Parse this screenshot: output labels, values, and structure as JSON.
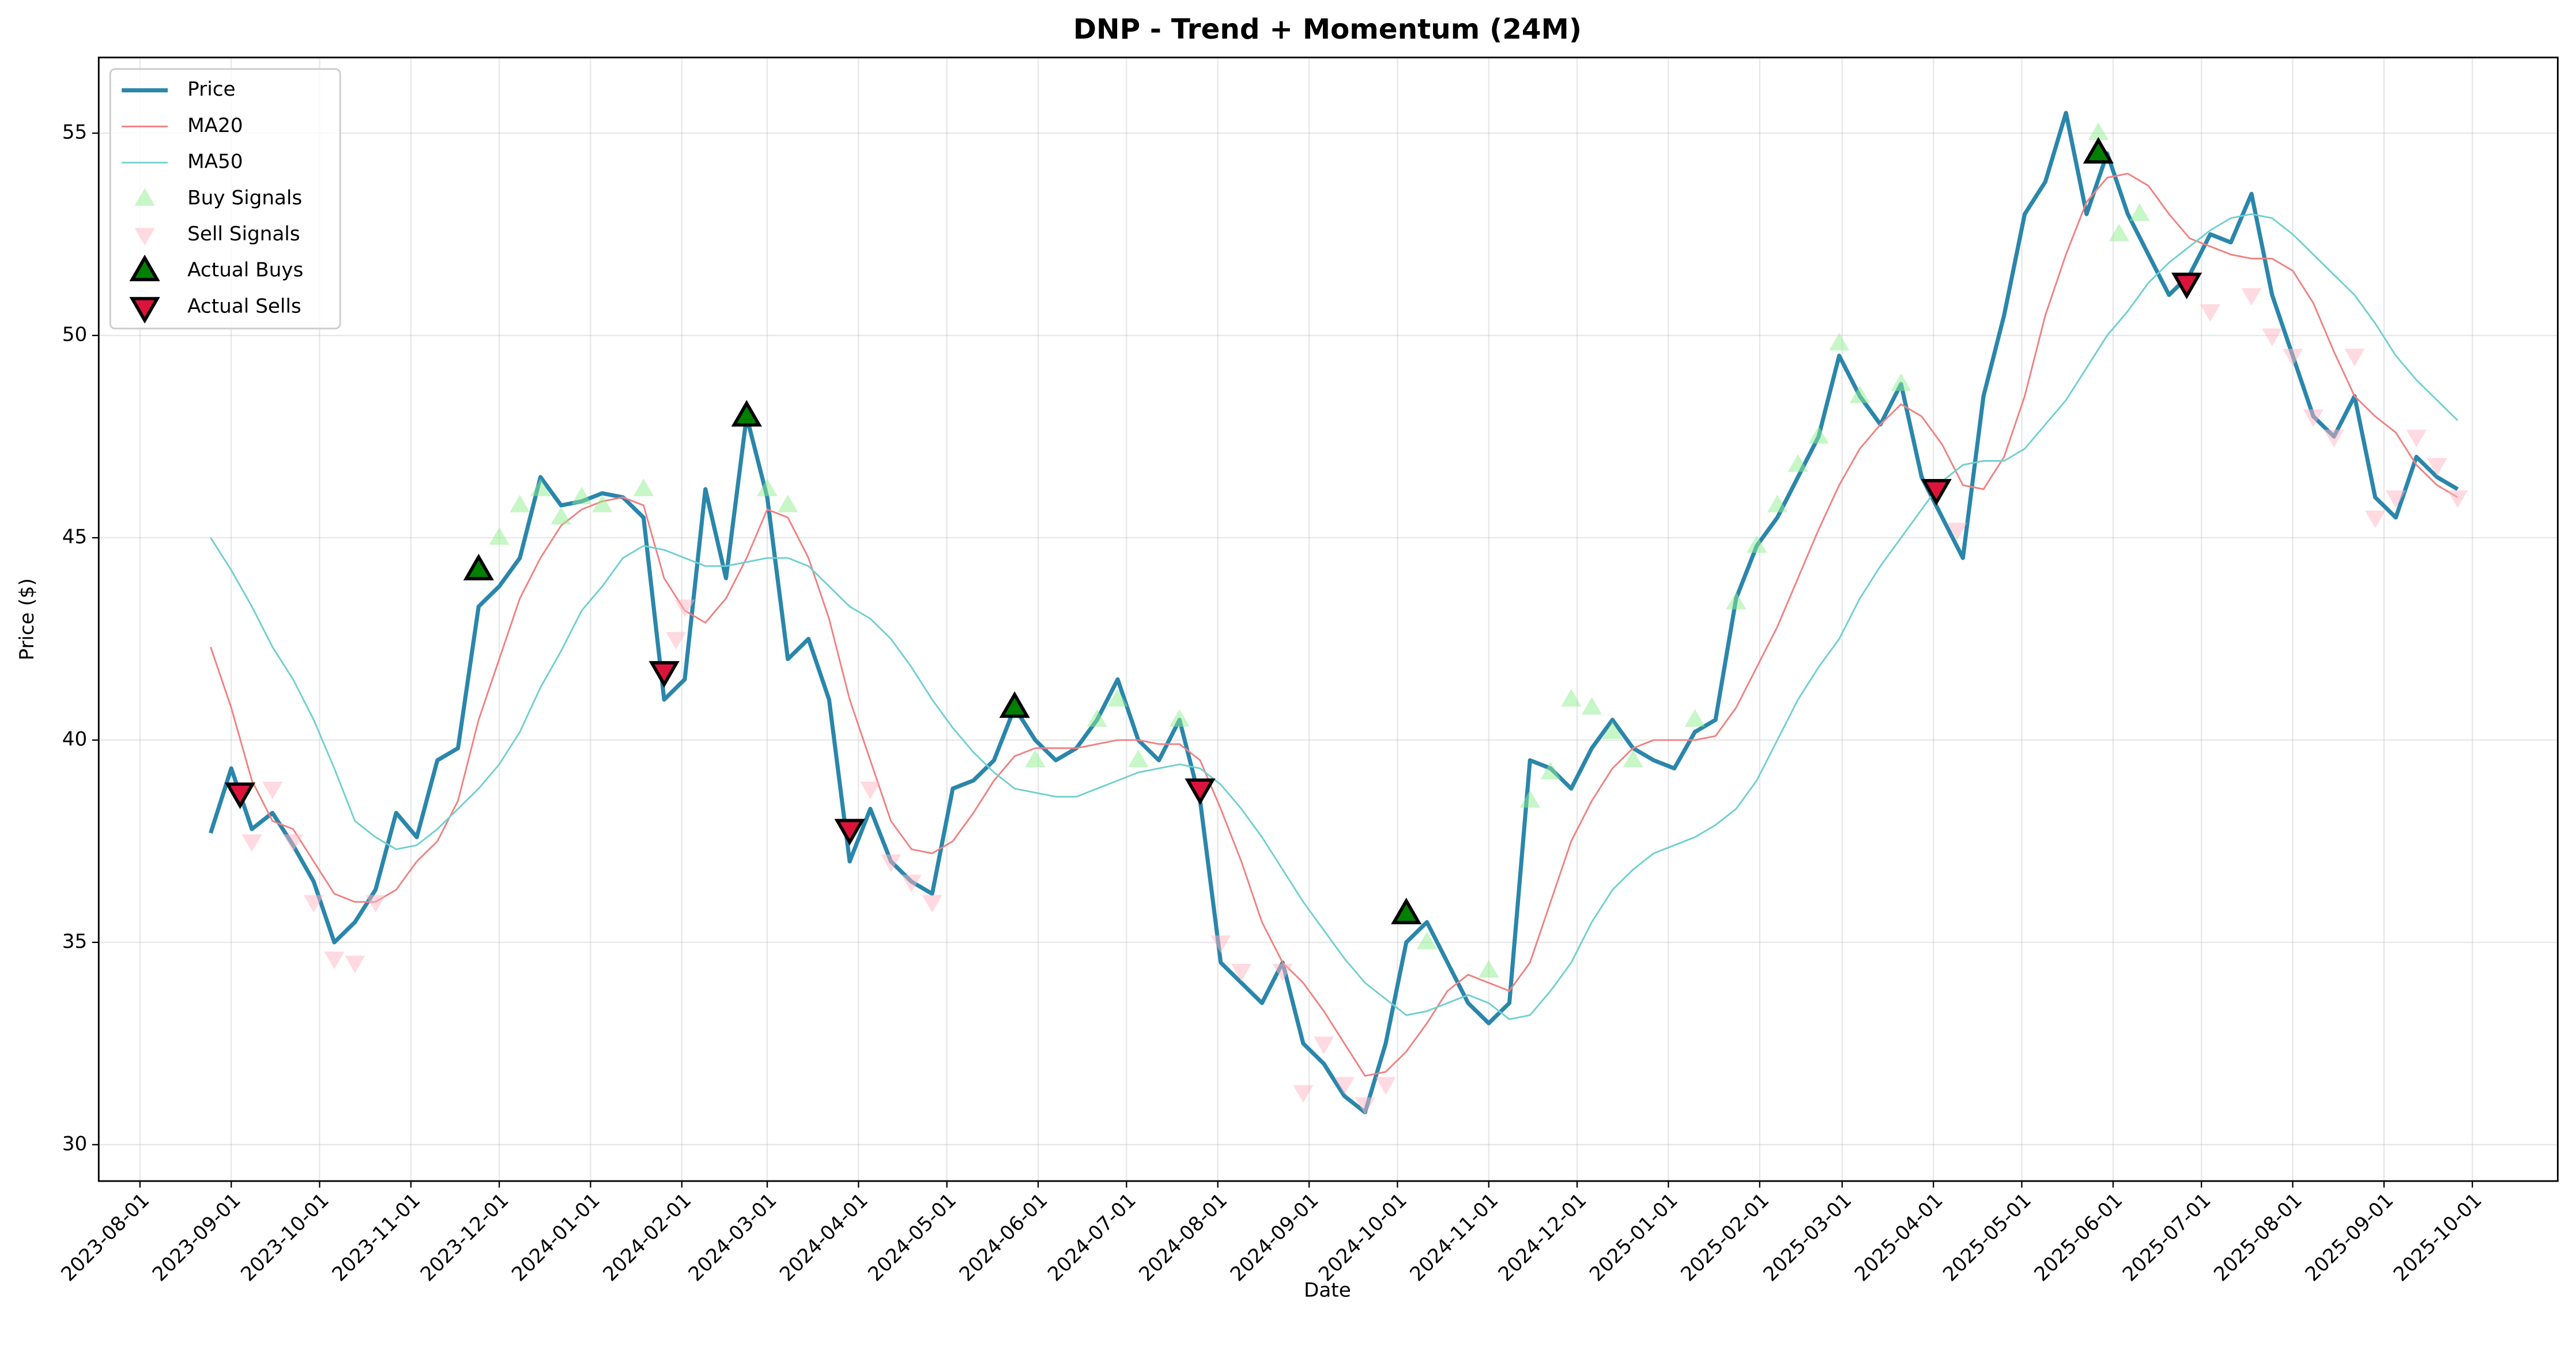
{
  "chart_data": {
    "type": "line",
    "title": "DNP - Trend + Momentum (24M)",
    "x_label": "Date",
    "y_label": "Price ($)",
    "xlim": [
      "2023-07-18",
      "2025-10-30"
    ],
    "xticks": [
      "2023-08-01",
      "2023-09-01",
      "2023-10-01",
      "2023-11-01",
      "2023-12-01",
      "2024-01-01",
      "2024-02-01",
      "2024-03-01",
      "2024-04-01",
      "2024-05-01",
      "2024-06-01",
      "2024-07-01",
      "2024-08-01",
      "2024-09-01",
      "2024-10-01",
      "2024-11-01",
      "2024-12-01",
      "2025-01-01",
      "2025-02-01",
      "2025-03-01",
      "2025-04-01",
      "2025-05-01",
      "2025-06-01",
      "2025-07-01",
      "2025-08-01",
      "2025-09-01",
      "2025-10-01"
    ],
    "ylim": [
      29.1,
      56.87
    ],
    "yticks": [
      30,
      35,
      40,
      45,
      50,
      55
    ],
    "grid": true,
    "legend": "upper left",
    "series": [
      {
        "name": "Price",
        "type": "line",
        "color": "#2a86ab",
        "linewidth": 2.5,
        "x": [
          "2023-08-25",
          "2023-09-01",
          "2023-09-08",
          "2023-09-15",
          "2023-09-22",
          "2023-09-29",
          "2023-10-06",
          "2023-10-13",
          "2023-10-20",
          "2023-10-27",
          "2023-11-03",
          "2023-11-10",
          "2023-11-17",
          "2023-11-24",
          "2023-12-01",
          "2023-12-08",
          "2023-12-15",
          "2023-12-22",
          "2023-12-29",
          "2024-01-05",
          "2024-01-12",
          "2024-01-19",
          "2024-01-26",
          "2024-02-02",
          "2024-02-09",
          "2024-02-16",
          "2024-02-23",
          "2024-03-01",
          "2024-03-08",
          "2024-03-15",
          "2024-03-22",
          "2024-03-29",
          "2024-04-05",
          "2024-04-12",
          "2024-04-19",
          "2024-04-26",
          "2024-05-03",
          "2024-05-10",
          "2024-05-17",
          "2024-05-24",
          "2024-05-31",
          "2024-06-07",
          "2024-06-14",
          "2024-06-21",
          "2024-06-28",
          "2024-07-05",
          "2024-07-12",
          "2024-07-19",
          "2024-07-26",
          "2024-08-02",
          "2024-08-09",
          "2024-08-16",
          "2024-08-23",
          "2024-08-30",
          "2024-09-06",
          "2024-09-13",
          "2024-09-20",
          "2024-09-27",
          "2024-10-04",
          "2024-10-11",
          "2024-10-18",
          "2024-10-25",
          "2024-11-01",
          "2024-11-08",
          "2024-11-15",
          "2024-11-22",
          "2024-11-29",
          "2024-12-06",
          "2024-12-13",
          "2024-12-20",
          "2024-12-27",
          "2025-01-03",
          "2025-01-10",
          "2025-01-17",
          "2025-01-24",
          "2025-01-31",
          "2025-02-07",
          "2025-02-14",
          "2025-02-21",
          "2025-02-28",
          "2025-03-07",
          "2025-03-14",
          "2025-03-21",
          "2025-03-28",
          "2025-04-04",
          "2025-04-11",
          "2025-04-18",
          "2025-04-25",
          "2025-05-02",
          "2025-05-09",
          "2025-05-16",
          "2025-05-23",
          "2025-05-30",
          "2025-06-06",
          "2025-06-13",
          "2025-06-20",
          "2025-06-27",
          "2025-07-04",
          "2025-07-11",
          "2025-07-18",
          "2025-07-25",
          "2025-08-01",
          "2025-08-08",
          "2025-08-15",
          "2025-08-22",
          "2025-08-29",
          "2025-09-05",
          "2025-09-12",
          "2025-09-19",
          "2025-09-26"
        ],
        "values": [
          37.7,
          39.3,
          37.8,
          38.2,
          37.4,
          36.5,
          35.0,
          35.5,
          36.3,
          38.2,
          37.6,
          39.5,
          39.8,
          43.3,
          43.8,
          44.5,
          46.5,
          45.8,
          45.9,
          46.1,
          46.0,
          45.5,
          41.0,
          41.5,
          46.2,
          44.0,
          48.0,
          46.0,
          42.0,
          42.5,
          41.0,
          37.0,
          38.3,
          37.0,
          36.5,
          36.2,
          38.8,
          39.0,
          39.5,
          40.8,
          40.0,
          39.5,
          39.8,
          40.5,
          41.5,
          40.0,
          39.5,
          40.5,
          38.5,
          34.5,
          34.0,
          33.5,
          34.5,
          32.5,
          32.0,
          31.2,
          30.8,
          32.5,
          35.0,
          35.5,
          34.5,
          33.5,
          33.0,
          33.5,
          39.5,
          39.3,
          38.8,
          39.8,
          40.5,
          39.8,
          39.5,
          39.3,
          40.2,
          40.5,
          43.5,
          44.8,
          45.5,
          46.5,
          47.5,
          49.5,
          48.5,
          47.8,
          48.8,
          46.5,
          45.5,
          44.5,
          48.5,
          50.5,
          53.0,
          53.8,
          55.5,
          53.0,
          54.5,
          53.0,
          52.0,
          51.0,
          51.5,
          52.5,
          52.3,
          53.5,
          51.0,
          49.5,
          48.0,
          47.5,
          48.5,
          46.0,
          45.5,
          47.0,
          46.5,
          46.2
        ]
      },
      {
        "name": "MA20",
        "type": "line",
        "color": "#f08080",
        "linewidth": 1,
        "x": [
          "2023-08-25",
          "2023-09-01",
          "2023-09-08",
          "2023-09-15",
          "2023-09-22",
          "2023-09-29",
          "2023-10-06",
          "2023-10-13",
          "2023-10-20",
          "2023-10-27",
          "2023-11-03",
          "2023-11-10",
          "2023-11-17",
          "2023-11-24",
          "2023-12-01",
          "2023-12-08",
          "2023-12-15",
          "2023-12-22",
          "2023-12-29",
          "2024-01-05",
          "2024-01-12",
          "2024-01-19",
          "2024-01-26",
          "2024-02-02",
          "2024-02-09",
          "2024-02-16",
          "2024-02-23",
          "2024-03-01",
          "2024-03-08",
          "2024-03-15",
          "2024-03-22",
          "2024-03-29",
          "2024-04-05",
          "2024-04-12",
          "2024-04-19",
          "2024-04-26",
          "2024-05-03",
          "2024-05-10",
          "2024-05-17",
          "2024-05-24",
          "2024-05-31",
          "2024-06-07",
          "2024-06-14",
          "2024-06-21",
          "2024-06-28",
          "2024-07-05",
          "2024-07-12",
          "2024-07-19",
          "2024-07-26",
          "2024-08-02",
          "2024-08-09",
          "2024-08-16",
          "2024-08-23",
          "2024-08-30",
          "2024-09-06",
          "2024-09-13",
          "2024-09-20",
          "2024-09-27",
          "2024-10-04",
          "2024-10-11",
          "2024-10-18",
          "2024-10-25",
          "2024-11-01",
          "2024-11-08",
          "2024-11-15",
          "2024-11-22",
          "2024-11-29",
          "2024-12-06",
          "2024-12-13",
          "2024-12-20",
          "2024-12-27",
          "2025-01-03",
          "2025-01-10",
          "2025-01-17",
          "2025-01-24",
          "2025-01-31",
          "2025-02-07",
          "2025-02-14",
          "2025-02-21",
          "2025-02-28",
          "2025-03-07",
          "2025-03-14",
          "2025-03-21",
          "2025-03-28",
          "2025-04-04",
          "2025-04-11",
          "2025-04-18",
          "2025-04-25",
          "2025-05-02",
          "2025-05-09",
          "2025-05-16",
          "2025-05-23",
          "2025-05-30",
          "2025-06-06",
          "2025-06-13",
          "2025-06-20",
          "2025-06-27",
          "2025-07-04",
          "2025-07-11",
          "2025-07-18",
          "2025-07-25",
          "2025-08-01",
          "2025-08-08",
          "2025-08-15",
          "2025-08-22",
          "2025-08-29",
          "2025-09-05",
          "2025-09-12",
          "2025-09-19",
          "2025-09-26"
        ],
        "values": [
          42.3,
          40.8,
          39.0,
          38.0,
          37.8,
          37.0,
          36.2,
          36.0,
          36.0,
          36.3,
          37.0,
          37.5,
          38.5,
          40.5,
          42.0,
          43.5,
          44.5,
          45.3,
          45.7,
          45.9,
          46.0,
          45.8,
          44.0,
          43.2,
          42.9,
          43.5,
          44.5,
          45.7,
          45.5,
          44.5,
          43.0,
          41.0,
          39.5,
          38.0,
          37.3,
          37.2,
          37.5,
          38.2,
          39.0,
          39.6,
          39.8,
          39.8,
          39.8,
          39.9,
          40.0,
          40.0,
          39.9,
          39.9,
          39.5,
          38.3,
          37.0,
          35.5,
          34.5,
          34.0,
          33.3,
          32.5,
          31.7,
          31.8,
          32.3,
          33.0,
          33.8,
          34.2,
          34.0,
          33.8,
          34.5,
          36.0,
          37.5,
          38.5,
          39.3,
          39.8,
          40.0,
          40.0,
          40.0,
          40.1,
          40.8,
          41.8,
          42.8,
          44.0,
          45.2,
          46.3,
          47.2,
          47.8,
          48.3,
          48.0,
          47.3,
          46.3,
          46.2,
          47.0,
          48.5,
          50.5,
          52.0,
          53.3,
          53.9,
          54.0,
          53.7,
          53.0,
          52.4,
          52.2,
          52.0,
          51.9,
          51.9,
          51.6,
          50.8,
          49.6,
          48.5,
          48.0,
          47.6,
          46.8,
          46.3,
          46.0
        ]
      },
      {
        "name": "MA50",
        "type": "line",
        "color": "#6fcfcf",
        "linewidth": 1,
        "x": [
          "2023-08-25",
          "2023-09-01",
          "2023-09-08",
          "2023-09-15",
          "2023-09-22",
          "2023-09-29",
          "2023-10-06",
          "2023-10-13",
          "2023-10-20",
          "2023-10-27",
          "2023-11-03",
          "2023-11-10",
          "2023-11-17",
          "2023-11-24",
          "2023-12-01",
          "2023-12-08",
          "2023-12-15",
          "2023-12-22",
          "2023-12-29",
          "2024-01-05",
          "2024-01-12",
          "2024-01-19",
          "2024-01-26",
          "2024-02-02",
          "2024-02-09",
          "2024-02-16",
          "2024-02-23",
          "2024-03-01",
          "2024-03-08",
          "2024-03-15",
          "2024-03-22",
          "2024-03-29",
          "2024-04-05",
          "2024-04-12",
          "2024-04-19",
          "2024-04-26",
          "2024-05-03",
          "2024-05-10",
          "2024-05-17",
          "2024-05-24",
          "2024-05-31",
          "2024-06-07",
          "2024-06-14",
          "2024-06-21",
          "2024-06-28",
          "2024-07-05",
          "2024-07-12",
          "2024-07-19",
          "2024-07-26",
          "2024-08-02",
          "2024-08-09",
          "2024-08-16",
          "2024-08-23",
          "2024-08-30",
          "2024-09-06",
          "2024-09-13",
          "2024-09-20",
          "2024-09-27",
          "2024-10-04",
          "2024-10-11",
          "2024-10-18",
          "2024-10-25",
          "2024-11-01",
          "2024-11-08",
          "2024-11-15",
          "2024-11-22",
          "2024-11-29",
          "2024-12-06",
          "2024-12-13",
          "2024-12-20",
          "2024-12-27",
          "2025-01-03",
          "2025-01-10",
          "2025-01-17",
          "2025-01-24",
          "2025-01-31",
          "2025-02-07",
          "2025-02-14",
          "2025-02-21",
          "2025-02-28",
          "2025-03-07",
          "2025-03-14",
          "2025-03-21",
          "2025-03-28",
          "2025-04-04",
          "2025-04-11",
          "2025-04-18",
          "2025-04-25",
          "2025-05-02",
          "2025-05-09",
          "2025-05-16",
          "2025-05-23",
          "2025-05-30",
          "2025-06-06",
          "2025-06-13",
          "2025-06-20",
          "2025-06-27",
          "2025-07-04",
          "2025-07-11",
          "2025-07-18",
          "2025-07-25",
          "2025-08-01",
          "2025-08-08",
          "2025-08-15",
          "2025-08-22",
          "2025-08-29",
          "2025-09-05",
          "2025-09-12",
          "2025-09-19",
          "2025-09-26"
        ],
        "values": [
          45.0,
          44.2,
          43.3,
          42.3,
          41.5,
          40.5,
          39.3,
          38.0,
          37.6,
          37.3,
          37.4,
          37.8,
          38.3,
          38.8,
          39.4,
          40.2,
          41.3,
          42.2,
          43.2,
          43.8,
          44.5,
          44.8,
          44.7,
          44.5,
          44.3,
          44.3,
          44.4,
          44.5,
          44.5,
          44.3,
          43.8,
          43.3,
          43.0,
          42.5,
          41.8,
          41.0,
          40.3,
          39.7,
          39.2,
          38.8,
          38.7,
          38.6,
          38.6,
          38.8,
          39.0,
          39.2,
          39.3,
          39.4,
          39.3,
          38.9,
          38.3,
          37.6,
          36.8,
          36.0,
          35.3,
          34.6,
          34.0,
          33.6,
          33.2,
          33.3,
          33.5,
          33.7,
          33.5,
          33.1,
          33.2,
          33.8,
          34.5,
          35.5,
          36.3,
          36.8,
          37.2,
          37.4,
          37.6,
          37.9,
          38.3,
          39.0,
          40.0,
          41.0,
          41.8,
          42.5,
          43.5,
          44.3,
          45.0,
          45.7,
          46.4,
          46.8,
          46.9,
          46.9,
          47.2,
          47.8,
          48.4,
          49.2,
          50.0,
          50.6,
          51.3,
          51.8,
          52.2,
          52.6,
          52.9,
          53.0,
          52.9,
          52.5,
          52.0,
          51.5,
          51.0,
          50.3,
          49.5,
          48.9,
          48.4,
          47.9
        ]
      },
      {
        "name": "Buy Signals",
        "type": "scatter",
        "marker": "^",
        "color": "#90ee90",
        "alpha": 0.5,
        "x": [
          "2023-11-24",
          "2023-12-01",
          "2023-12-08",
          "2023-12-15",
          "2023-12-22",
          "2023-12-29",
          "2024-01-05",
          "2024-01-19",
          "2024-02-23",
          "2024-03-01",
          "2024-03-08",
          "2024-05-24",
          "2024-05-31",
          "2024-06-21",
          "2024-06-28",
          "2024-07-05",
          "2024-07-19",
          "2024-10-04",
          "2024-10-11",
          "2024-11-01",
          "2024-11-15",
          "2024-11-22",
          "2024-11-29",
          "2024-12-06",
          "2024-12-13",
          "2024-12-20",
          "2025-01-10",
          "2025-01-24",
          "2025-01-31",
          "2025-02-07",
          "2025-02-14",
          "2025-02-21",
          "2025-02-28",
          "2025-03-07",
          "2025-03-21",
          "2025-05-27",
          "2025-06-03",
          "2025-06-10"
        ],
        "values": [
          44.3,
          45.0,
          45.8,
          46.2,
          45.5,
          46.0,
          45.8,
          46.2,
          48.0,
          46.2,
          45.8,
          40.8,
          39.5,
          40.5,
          41.0,
          39.5,
          40.5,
          35.7,
          35.0,
          34.3,
          38.5,
          39.2,
          41.0,
          40.8,
          40.2,
          39.5,
          40.5,
          43.4,
          44.8,
          45.8,
          46.8,
          47.5,
          49.8,
          48.5,
          48.8,
          55.0,
          52.5,
          53.0
        ]
      },
      {
        "name": "Sell Signals",
        "type": "scatter",
        "marker": "v",
        "color": "#ffb6c1",
        "alpha": 0.5,
        "x": [
          "2023-09-04",
          "2023-09-08",
          "2023-09-15",
          "2023-09-22",
          "2023-09-29",
          "2023-10-06",
          "2023-10-13",
          "2023-10-20",
          "2024-01-26",
          "2024-01-30",
          "2024-02-02",
          "2024-03-29",
          "2024-04-05",
          "2024-04-12",
          "2024-04-19",
          "2024-04-26",
          "2024-07-26",
          "2024-08-02",
          "2024-08-09",
          "2024-08-23",
          "2024-08-30",
          "2024-09-06",
          "2024-09-13",
          "2024-09-20",
          "2024-09-27",
          "2025-04-02",
          "2025-04-09",
          "2025-06-26",
          "2025-07-04",
          "2025-07-18",
          "2025-07-25",
          "2025-08-01",
          "2025-08-08",
          "2025-08-15",
          "2025-08-22",
          "2025-08-29",
          "2025-09-05",
          "2025-09-12",
          "2025-09-19",
          "2025-09-26"
        ],
        "values": [
          38.7,
          37.5,
          38.8,
          37.5,
          36.0,
          34.6,
          34.5,
          36.0,
          41.7,
          42.5,
          43.3,
          37.8,
          38.8,
          37.0,
          36.5,
          36.0,
          38.8,
          35.0,
          34.3,
          34.3,
          31.3,
          32.5,
          31.5,
          31.0,
          31.5,
          46.2,
          45.2,
          51.3,
          50.6,
          51.0,
          50.0,
          49.5,
          48.0,
          47.5,
          49.5,
          45.5,
          46.0,
          47.5,
          46.8,
          46.0
        ]
      },
      {
        "name": "Actual Buys",
        "type": "scatter",
        "marker": "^",
        "color": "#008000",
        "edgecolor": "#000000",
        "alpha": 1,
        "x": [
          "2023-11-24",
          "2024-02-23",
          "2024-05-24",
          "2024-10-04",
          "2025-05-27"
        ],
        "values": [
          44.2,
          48.0,
          40.8,
          35.7,
          54.5
        ]
      },
      {
        "name": "Actual Sells",
        "type": "scatter",
        "marker": "v",
        "color": "#dc143c",
        "edgecolor": "#000000",
        "alpha": 1,
        "x": [
          "2023-09-04",
          "2024-01-26",
          "2024-03-29",
          "2024-07-26",
          "2025-04-02",
          "2025-06-26"
        ],
        "values": [
          38.7,
          41.7,
          37.8,
          38.8,
          46.2,
          51.3
        ]
      }
    ]
  }
}
